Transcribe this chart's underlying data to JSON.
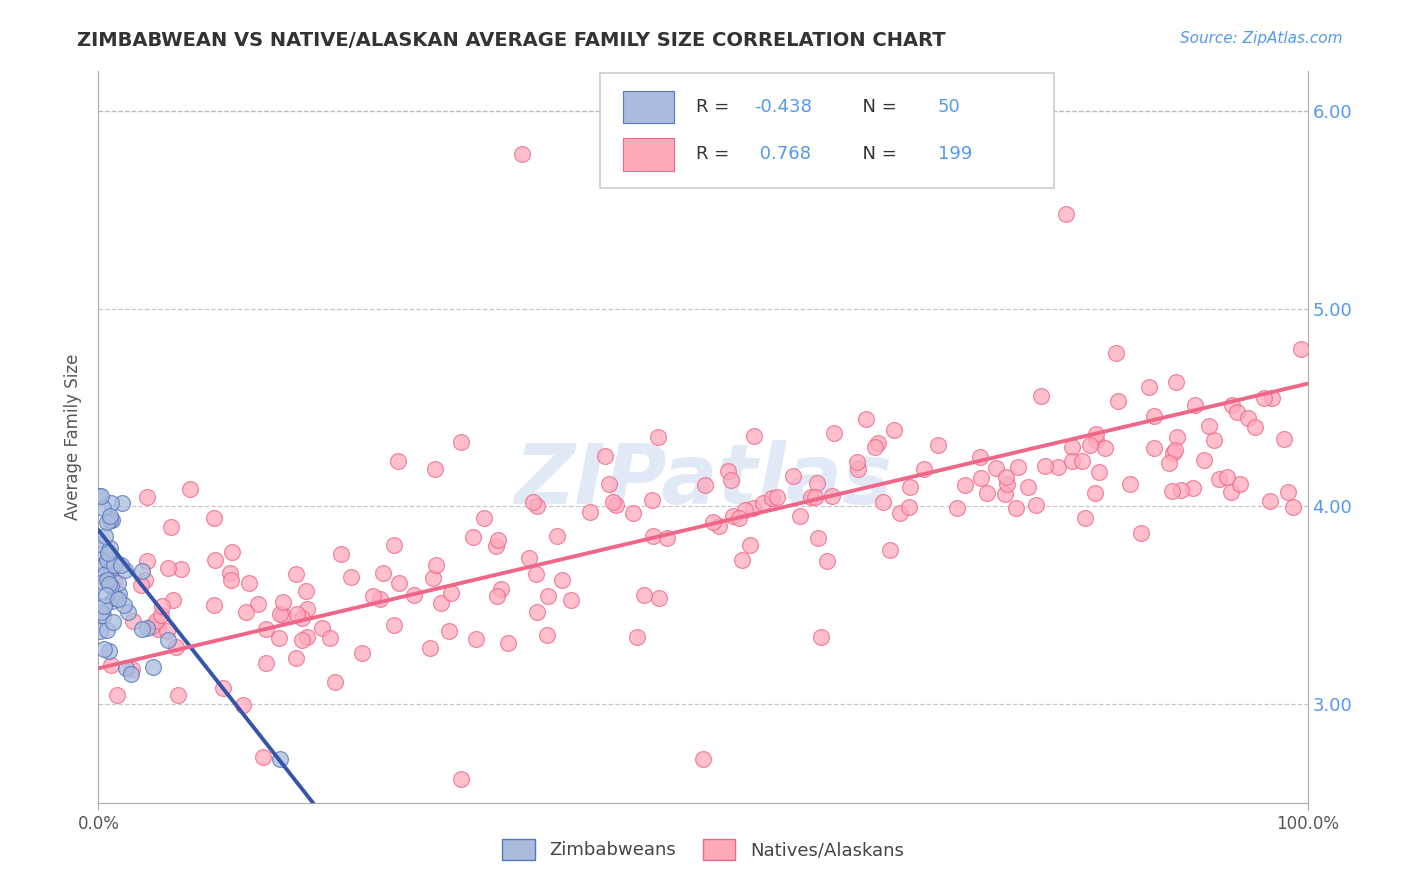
{
  "title": "ZIMBABWEAN VS NATIVE/ALASKAN AVERAGE FAMILY SIZE CORRELATION CHART",
  "source": "Source: ZipAtlas.com",
  "ylabel": "Average Family Size",
  "legend_labels": [
    "Zimbabweans",
    "Natives/Alaskans"
  ],
  "r_zimbabwean": -0.438,
  "n_zimbabwean": 50,
  "r_native": 0.768,
  "n_native": 199,
  "xlim": [
    0,
    100
  ],
  "ylim": [
    2.5,
    6.2
  ],
  "yticks": [
    3.0,
    4.0,
    5.0,
    6.0
  ],
  "xticklabels": [
    "0.0%",
    "100.0%"
  ],
  "color_zimbabwean": "#AABBDD",
  "color_native": "#FFAABB",
  "edge_color_zimbabwean": "#5577BB",
  "edge_color_native": "#EE6688",
  "line_color_zimbabwean": "#3355AA",
  "line_color_native": "#EE6688",
  "background_color": "#FFFFFF",
  "grid_color": "#BBBBBB",
  "title_color": "#333333",
  "tick_color_y": "#5599EE",
  "watermark_color": "#C8D8EE",
  "source_color": "#5599EE"
}
